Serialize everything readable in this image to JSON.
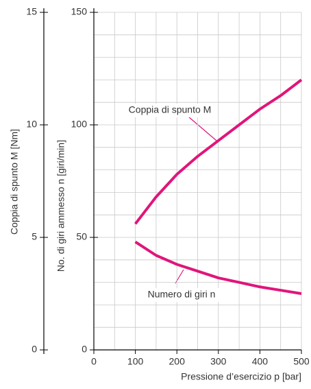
{
  "chart_data": {
    "type": "line",
    "x_label": "Pressione d’esercizio p [bar]",
    "y_label": "No. di giri ammesso n [giri/min]",
    "y2_label": "Coppia di spunto M [Nm]",
    "x": [
      100,
      150,
      200,
      250,
      300,
      350,
      400,
      450,
      500
    ],
    "series": [
      {
        "name": "Coppia di spunto M",
        "color": "#e0157a",
        "axis": "y2",
        "values": [
          5.6,
          6.8,
          7.8,
          8.6,
          9.3,
          10.0,
          10.7,
          11.3,
          12.0
        ]
      },
      {
        "name": "Numero di giri n",
        "color": "#e0157a",
        "values": [
          48,
          42,
          38,
          35,
          32,
          30,
          28,
          26.5,
          25
        ]
      }
    ],
    "xlim": [
      0,
      500
    ],
    "xticks": [
      0,
      100,
      200,
      300,
      400,
      500
    ],
    "ylim": [
      0,
      150
    ],
    "yticks": [
      0,
      50,
      100,
      150
    ],
    "y2lim": [
      0,
      15
    ],
    "y2ticks": [
      0,
      5,
      10,
      15
    ],
    "xgrid": [
      50,
      100,
      150,
      200,
      250,
      300,
      350,
      400,
      450,
      500
    ],
    "ygrid": [
      10,
      20,
      30,
      40,
      50,
      60,
      70,
      80,
      90,
      100,
      110,
      120,
      130,
      140,
      150
    ],
    "grid": true
  }
}
